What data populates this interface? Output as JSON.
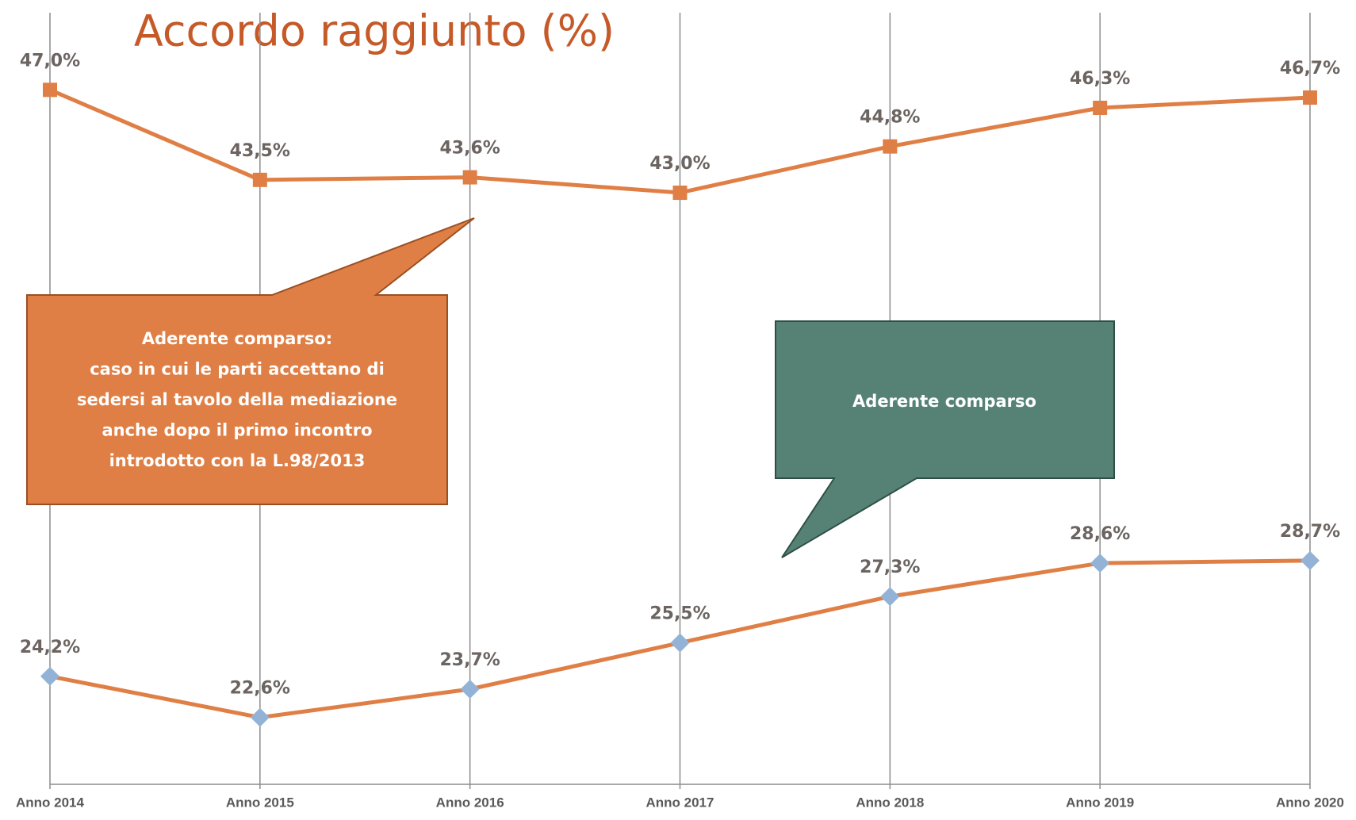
{
  "chart_data": {
    "type": "line",
    "title": "Accordo raggiunto (%)",
    "categories": [
      "Anno 2014",
      "Anno 2015",
      "Anno 2016",
      "Anno 2017",
      "Anno 2018",
      "Anno 2019",
      "Anno 2020"
    ],
    "ylim": [
      20,
      50
    ],
    "grid": true,
    "series": [
      {
        "color": "#e07f45",
        "marker": "square",
        "marker_color": "#e07f45",
        "values": [
          47.0,
          43.5,
          43.6,
          43.0,
          44.8,
          46.3,
          46.7
        ],
        "value_labels": [
          "47,0%",
          "43,5%",
          "43,6%",
          "43,0%",
          "44,8%",
          "46,3%",
          "46,7%"
        ]
      },
      {
        "color": "#e07f45",
        "marker": "diamond",
        "marker_color": "#93b3d6",
        "values": [
          24.2,
          22.6,
          23.7,
          25.5,
          27.3,
          28.6,
          28.7
        ],
        "value_labels": [
          "24,2%",
          "22,6%",
          "23,7%",
          "25,5%",
          "27,3%",
          "28,6%",
          "28,7%"
        ]
      }
    ],
    "annotations": [
      {
        "text": [
          "Aderente comparso:",
          "caso in cui le parti accettano di",
          "sedersi al tavolo della mediazione",
          "anche dopo il primo incontro",
          "introdotto con la L.98/2013"
        ],
        "color": "#df7f45"
      },
      {
        "text": [
          "Aderente comparso"
        ],
        "color": "#568276"
      }
    ]
  }
}
